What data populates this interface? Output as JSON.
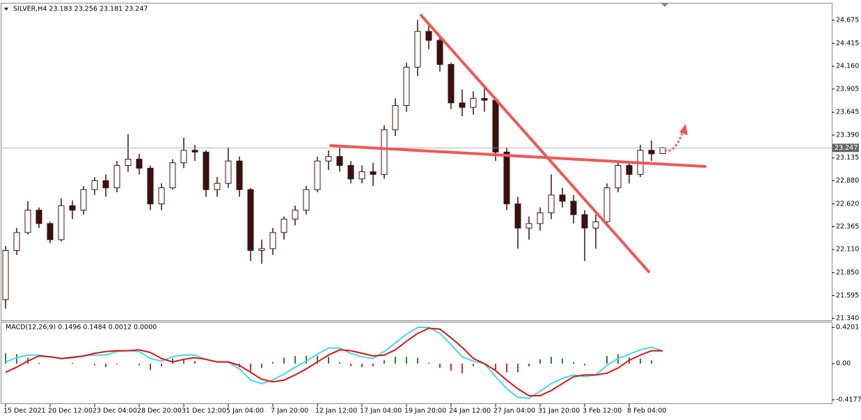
{
  "chart_data": [
    {
      "type": "candlestick",
      "title": "SILVER,H4  23.183 23.256 23.181 23.247",
      "categories": [
        "15 Dec 2021",
        null,
        null,
        null,
        "20 Dec 12:00",
        null,
        null,
        null,
        "23 Dec 04:00",
        null,
        null,
        null,
        "28 Dec 20:00",
        null,
        null,
        null,
        "31 Dec 12:00",
        null,
        null,
        null,
        "5 Jan 04:00",
        null,
        null,
        null,
        "7 Jan 20:00",
        null,
        null,
        null,
        "12 Jan 12:00",
        null,
        null,
        null,
        "17 Jan 04:00",
        null,
        null,
        null,
        "19 Jan 20:00",
        null,
        null,
        null,
        "24 Jan 12:00",
        null,
        null,
        null,
        "27 Jan 04:00",
        null,
        null,
        null,
        "31 Jan 20:00",
        null,
        null,
        null,
        "3 Feb 12:00",
        null,
        null,
        null,
        "8 Feb 04:00",
        null,
        null,
        null
      ],
      "open": [
        21.55,
        22.1,
        22.3,
        22.55,
        22.4,
        22.22,
        22.6,
        22.55,
        22.78,
        22.88,
        22.8,
        23.05,
        23.12,
        23.02,
        22.62,
        22.8,
        23.08,
        23.22,
        23.2,
        22.78,
        22.85,
        23.1,
        22.78,
        22.1,
        22.12,
        22.3,
        22.45,
        22.55,
        22.78,
        23.1,
        23.15,
        23.05,
        22.9,
        22.98,
        22.95,
        23.45,
        23.72,
        24.15,
        24.55,
        24.45,
        24.18,
        23.75,
        23.7,
        23.8,
        23.78,
        23.2,
        22.62,
        22.35,
        22.4,
        22.52,
        22.72,
        22.65,
        22.5,
        22.35,
        22.42,
        22.8,
        23.05,
        22.95,
        23.22,
        23.183
      ],
      "high": [
        22.15,
        22.35,
        22.65,
        22.58,
        22.42,
        22.68,
        22.66,
        22.82,
        22.92,
        22.95,
        23.1,
        23.4,
        23.18,
        23.05,
        22.85,
        23.12,
        23.36,
        23.28,
        23.22,
        22.92,
        23.25,
        23.15,
        22.8,
        22.22,
        22.35,
        22.48,
        22.6,
        22.82,
        23.15,
        23.22,
        23.25,
        23.1,
        23.05,
        23.08,
        23.5,
        23.8,
        24.2,
        24.68,
        24.62,
        24.48,
        24.2,
        23.9,
        23.88,
        23.95,
        23.8,
        23.25,
        22.7,
        22.48,
        22.58,
        22.95,
        22.8,
        22.72,
        22.55,
        22.5,
        22.85,
        23.1,
        23.08,
        23.28,
        23.33,
        23.256
      ],
      "low": [
        21.45,
        22.05,
        22.28,
        22.35,
        22.18,
        22.2,
        22.45,
        22.5,
        22.72,
        22.7,
        22.75,
        22.98,
        22.95,
        22.55,
        22.55,
        22.78,
        23.02,
        23.1,
        22.7,
        22.7,
        22.8,
        22.7,
        21.98,
        21.95,
        22.05,
        22.22,
        22.38,
        22.5,
        22.75,
        23.0,
        22.98,
        22.85,
        22.85,
        22.82,
        22.9,
        23.38,
        23.65,
        24.05,
        24.35,
        24.1,
        23.68,
        23.6,
        23.62,
        23.65,
        23.1,
        22.55,
        22.12,
        22.22,
        22.32,
        22.45,
        22.58,
        22.4,
        21.98,
        22.12,
        22.38,
        22.75,
        22.85,
        22.92,
        23.1,
        23.181
      ],
      "close": [
        22.1,
        22.3,
        22.55,
        22.4,
        22.22,
        22.6,
        22.55,
        22.78,
        22.88,
        22.8,
        23.05,
        23.12,
        23.02,
        22.62,
        22.8,
        23.08,
        23.22,
        23.2,
        22.78,
        22.85,
        23.1,
        22.78,
        22.1,
        22.12,
        22.3,
        22.45,
        22.55,
        22.78,
        23.1,
        23.15,
        23.05,
        22.9,
        22.98,
        22.95,
        23.45,
        23.72,
        24.15,
        24.55,
        24.45,
        24.18,
        23.75,
        23.7,
        23.8,
        23.78,
        23.2,
        22.62,
        22.35,
        22.4,
        22.52,
        22.72,
        22.65,
        22.5,
        22.35,
        22.42,
        22.8,
        23.05,
        22.95,
        23.22,
        23.18,
        23.247
      ],
      "color": "#3a1010",
      "current_price": 23.247,
      "ylim": [
        21.317,
        24.862
      ],
      "yticks": [
        24.675,
        24.415,
        {
          "value": 24.16,
          "label": "24.160"
        },
        23.905,
        23.645,
        {
          "value": 23.39,
          "label": "23.390"
        },
        23.135,
        {
          "value": 22.88,
          "label": "22.880"
        },
        {
          "value": 22.62,
          "label": "22.620"
        },
        22.365,
        {
          "value": 22.11,
          "label": "22.110"
        },
        {
          "value": 21.85,
          "label": "21.850"
        },
        21.595,
        {
          "value": 21.34,
          "label": "21.340"
        }
      ]
    },
    {
      "type": "macd",
      "title": "MACD(12,26,9) 0.1496 0.1484 0.0012 0.0000",
      "macd": [
        0.02,
        0.07,
        0.1,
        0.1,
        0.08,
        0.06,
        0.08,
        0.09,
        0.1,
        0.1,
        0.14,
        0.15,
        0.14,
        0.06,
        0.03,
        0.08,
        0.1,
        0.1,
        0.05,
        0.02,
        0.02,
        -0.06,
        -0.19,
        -0.23,
        -0.19,
        -0.12,
        -0.04,
        0.03,
        0.11,
        0.18,
        0.18,
        0.12,
        0.08,
        0.06,
        0.14,
        0.24,
        0.34,
        0.42,
        0.42,
        0.35,
        0.22,
        0.08,
        0.03,
        0.0,
        -0.15,
        -0.29,
        -0.39,
        -0.4,
        -0.32,
        -0.23,
        -0.17,
        -0.13,
        -0.15,
        -0.13,
        -0.02,
        0.06,
        0.11,
        0.16,
        0.19,
        0.1496
      ],
      "signal": [
        -0.1,
        -0.04,
        0.03,
        0.09,
        0.08,
        0.06,
        0.07,
        0.09,
        0.12,
        0.14,
        0.15,
        0.15,
        0.16,
        0.13,
        0.06,
        0.02,
        0.05,
        0.07,
        0.05,
        0.02,
        0.02,
        -0.02,
        -0.1,
        -0.18,
        -0.21,
        -0.19,
        -0.13,
        -0.06,
        0.02,
        0.1,
        0.16,
        0.15,
        0.12,
        0.09,
        0.1,
        0.16,
        0.26,
        0.35,
        0.41,
        0.4,
        0.3,
        0.19,
        0.06,
        0.0,
        -0.08,
        -0.19,
        -0.29,
        -0.37,
        -0.37,
        -0.31,
        -0.23,
        -0.15,
        -0.13,
        -0.13,
        -0.11,
        -0.05,
        0.04,
        0.1,
        0.15,
        0.1484
      ],
      "histogram": [
        0.12,
        0.11,
        0.07,
        0.01,
        0,
        0,
        0.01,
        0,
        -0.02,
        -0.04,
        -0.01,
        0,
        -0.02,
        -0.07,
        -0.03,
        0.06,
        0.05,
        0.03,
        0,
        0,
        0,
        -0.04,
        -0.09,
        -0.05,
        0.02,
        0.07,
        0.09,
        0.09,
        0.09,
        0.08,
        0.02,
        -0.03,
        -0.04,
        -0.03,
        0.04,
        0.08,
        0.08,
        0.07,
        0.01,
        -0.05,
        -0.08,
        -0.11,
        -0.03,
        0,
        -0.07,
        -0.1,
        -0.1,
        -0.03,
        0.05,
        0.08,
        0.06,
        0.02,
        -0.02,
        0,
        0.09,
        0.11,
        0.07,
        0.06,
        0.04,
        0.0012
      ],
      "macd_color": "#3fd9f0",
      "signal_color": "#e01010",
      "up_color": "#2e7d2e",
      "down_color": "#c03030",
      "ylim": [
        -0.466,
        0.4765
      ],
      "yticks": [
        0.4201,
        {
          "value": 0,
          "label": "0.00"
        },
        -0.4177
      ]
    }
  ]
}
